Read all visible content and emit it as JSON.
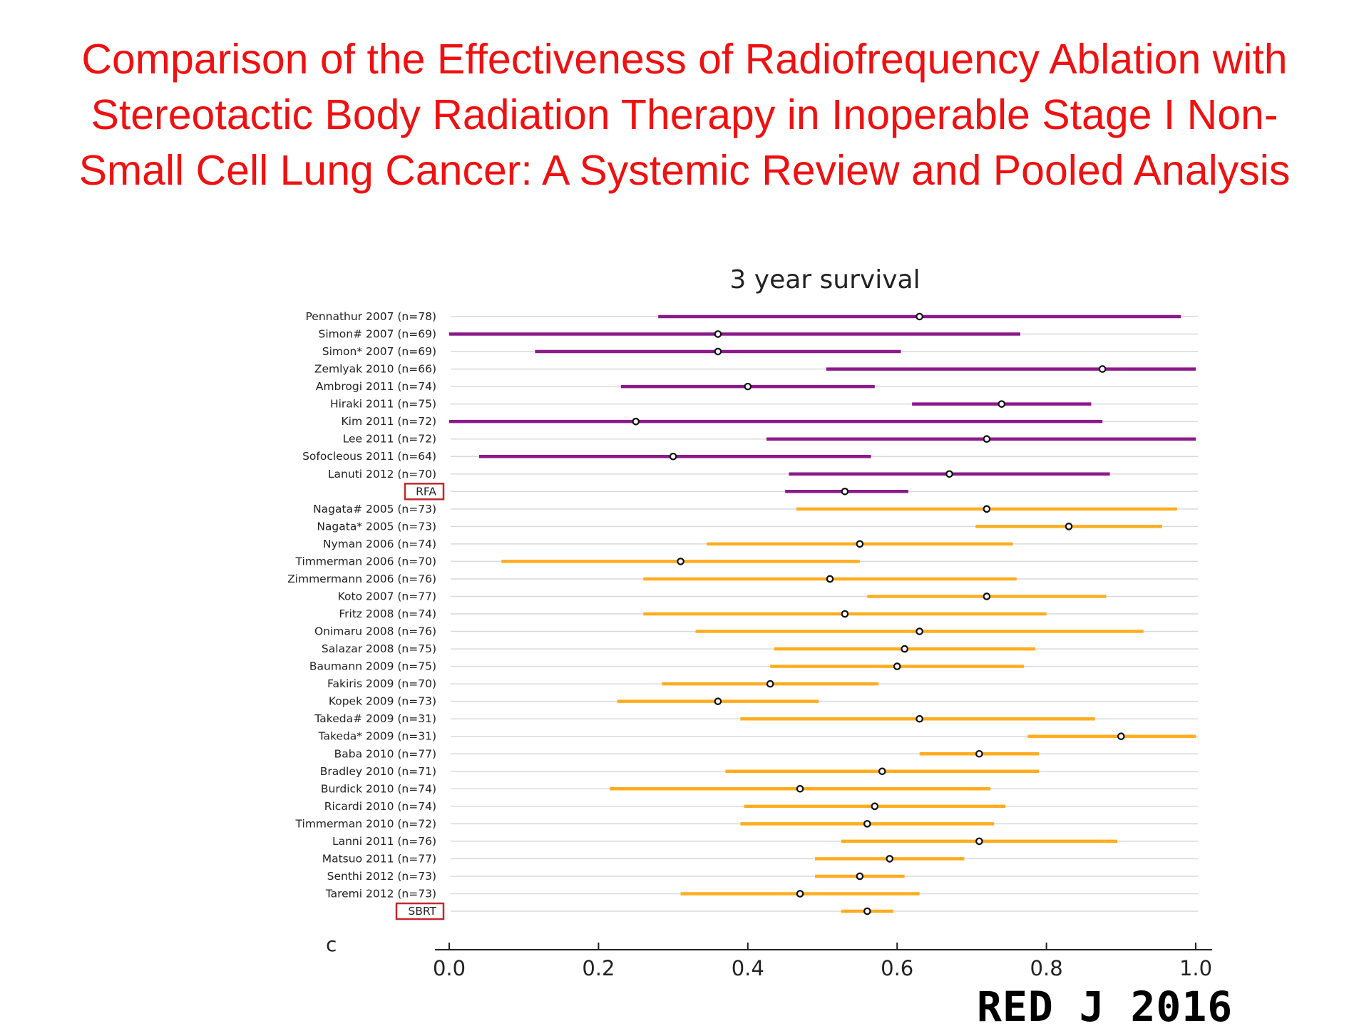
{
  "slide": {
    "title_lines": [
      "Comparison of the Effectiveness of Radiofrequency Ablation with",
      "Stereotactic Body Radiation Therapy in Inoperable Stage I Non-",
      "Small Cell Lung Cancer: A Systemic Review and Pooled Analysis"
    ],
    "panel_label": "c",
    "citation": "RED J 2016"
  },
  "colors": {
    "title": "#ee1111",
    "rfa": "#8b1a8b",
    "sbrt": "#ffad1f",
    "highlight_box": "#c0282d",
    "gridline": "#d9d9d9"
  },
  "chart_data": {
    "type": "forest",
    "title": "3 year survival",
    "xlim": [
      0.0,
      1.0
    ],
    "x_ticks": [
      "0.0",
      "0.2",
      "0.4",
      "0.6",
      "0.8",
      "1.0"
    ],
    "grid": true,
    "highlighted_labels": [
      "RFA",
      "SBRT"
    ],
    "rows": [
      {
        "label": "Pennathur 2007 (n=78)",
        "group": "RFA",
        "estimate": 0.63,
        "lower": 0.28,
        "upper": 0.98
      },
      {
        "label": "Simon# 2007 (n=69)",
        "group": "RFA",
        "estimate": 0.36,
        "lower": 0.0,
        "upper": 0.765
      },
      {
        "label": "Simon* 2007 (n=69)",
        "group": "RFA",
        "estimate": 0.36,
        "lower": 0.115,
        "upper": 0.605
      },
      {
        "label": "Zemlyak 2010 (n=66)",
        "group": "RFA",
        "estimate": 0.875,
        "lower": 0.505,
        "upper": 1.0
      },
      {
        "label": "Ambrogi 2011 (n=74)",
        "group": "RFA",
        "estimate": 0.4,
        "lower": 0.23,
        "upper": 0.57
      },
      {
        "label": "Hiraki 2011 (n=75)",
        "group": "RFA",
        "estimate": 0.74,
        "lower": 0.62,
        "upper": 0.86
      },
      {
        "label": "Kim 2011 (n=72)",
        "group": "RFA",
        "estimate": 0.25,
        "lower": 0.0,
        "upper": 0.875
      },
      {
        "label": "Lee 2011 (n=72)",
        "group": "RFA",
        "estimate": 0.72,
        "lower": 0.425,
        "upper": 1.0
      },
      {
        "label": "Sofocleous 2011 (n=64)",
        "group": "RFA",
        "estimate": 0.3,
        "lower": 0.04,
        "upper": 0.565
      },
      {
        "label": "Lanuti 2012 (n=70)",
        "group": "RFA",
        "estimate": 0.67,
        "lower": 0.455,
        "upper": 0.885
      },
      {
        "label": "RFA",
        "group": "RFA",
        "pooled": true,
        "estimate": 0.53,
        "lower": 0.45,
        "upper": 0.615
      },
      {
        "label": "Nagata# 2005 (n=73)",
        "group": "SBRT",
        "estimate": 0.72,
        "lower": 0.465,
        "upper": 0.975
      },
      {
        "label": "Nagata* 2005 (n=73)",
        "group": "SBRT",
        "estimate": 0.83,
        "lower": 0.705,
        "upper": 0.955
      },
      {
        "label": "Nyman 2006 (n=74)",
        "group": "SBRT",
        "estimate": 0.55,
        "lower": 0.345,
        "upper": 0.755
      },
      {
        "label": "Timmerman 2006 (n=70)",
        "group": "SBRT",
        "estimate": 0.31,
        "lower": 0.07,
        "upper": 0.55
      },
      {
        "label": "Zimmermann 2006 (n=76)",
        "group": "SBRT",
        "estimate": 0.51,
        "lower": 0.26,
        "upper": 0.76
      },
      {
        "label": "Koto 2007 (n=77)",
        "group": "SBRT",
        "estimate": 0.72,
        "lower": 0.56,
        "upper": 0.88
      },
      {
        "label": "Fritz  2008 (n=74)",
        "group": "SBRT",
        "estimate": 0.53,
        "lower": 0.26,
        "upper": 0.8
      },
      {
        "label": "Onimaru  2008 (n=76)",
        "group": "SBRT",
        "estimate": 0.63,
        "lower": 0.33,
        "upper": 0.93
      },
      {
        "label": "Salazar 2008 (n=75)",
        "group": "SBRT",
        "estimate": 0.61,
        "lower": 0.435,
        "upper": 0.785
      },
      {
        "label": "Baumann  2009 (n=75)",
        "group": "SBRT",
        "estimate": 0.6,
        "lower": 0.43,
        "upper": 0.77
      },
      {
        "label": "Fakiris 2009 (n=70)",
        "group": "SBRT",
        "estimate": 0.43,
        "lower": 0.285,
        "upper": 0.575
      },
      {
        "label": "Kopek  2009 (n=73)",
        "group": "SBRT",
        "estimate": 0.36,
        "lower": 0.225,
        "upper": 0.495
      },
      {
        "label": "Takeda#  2009 (n=31)",
        "group": "SBRT",
        "estimate": 0.63,
        "lower": 0.39,
        "upper": 0.865
      },
      {
        "label": "Takeda* 2009 (n=31)",
        "group": "SBRT",
        "estimate": 0.9,
        "lower": 0.775,
        "upper": 1.0
      },
      {
        "label": "Baba  2010 (n=77)",
        "group": "SBRT",
        "estimate": 0.71,
        "lower": 0.63,
        "upper": 0.79
      },
      {
        "label": "Bradley  2010 (n=71)",
        "group": "SBRT",
        "estimate": 0.58,
        "lower": 0.37,
        "upper": 0.79
      },
      {
        "label": "Burdick 2010 (n=74)",
        "group": "SBRT",
        "estimate": 0.47,
        "lower": 0.215,
        "upper": 0.725
      },
      {
        "label": "Ricardi 2010 (n=74)",
        "group": "SBRT",
        "estimate": 0.57,
        "lower": 0.395,
        "upper": 0.745
      },
      {
        "label": "Timmerman 2010 (n=72)",
        "group": "SBRT",
        "estimate": 0.56,
        "lower": 0.39,
        "upper": 0.73
      },
      {
        "label": "Lanni  2011 (n=76)",
        "group": "SBRT",
        "estimate": 0.71,
        "lower": 0.525,
        "upper": 0.895
      },
      {
        "label": "Matsuo 2011 (n=77)",
        "group": "SBRT",
        "estimate": 0.59,
        "lower": 0.49,
        "upper": 0.69
      },
      {
        "label": "Senthi 2012 (n=73)",
        "group": "SBRT",
        "estimate": 0.55,
        "lower": 0.49,
        "upper": 0.61
      },
      {
        "label": "Taremi 2012 (n=73)",
        "group": "SBRT",
        "estimate": 0.47,
        "lower": 0.31,
        "upper": 0.63
      },
      {
        "label": "SBRT",
        "group": "SBRT",
        "pooled": true,
        "estimate": 0.56,
        "lower": 0.525,
        "upper": 0.595
      }
    ]
  }
}
